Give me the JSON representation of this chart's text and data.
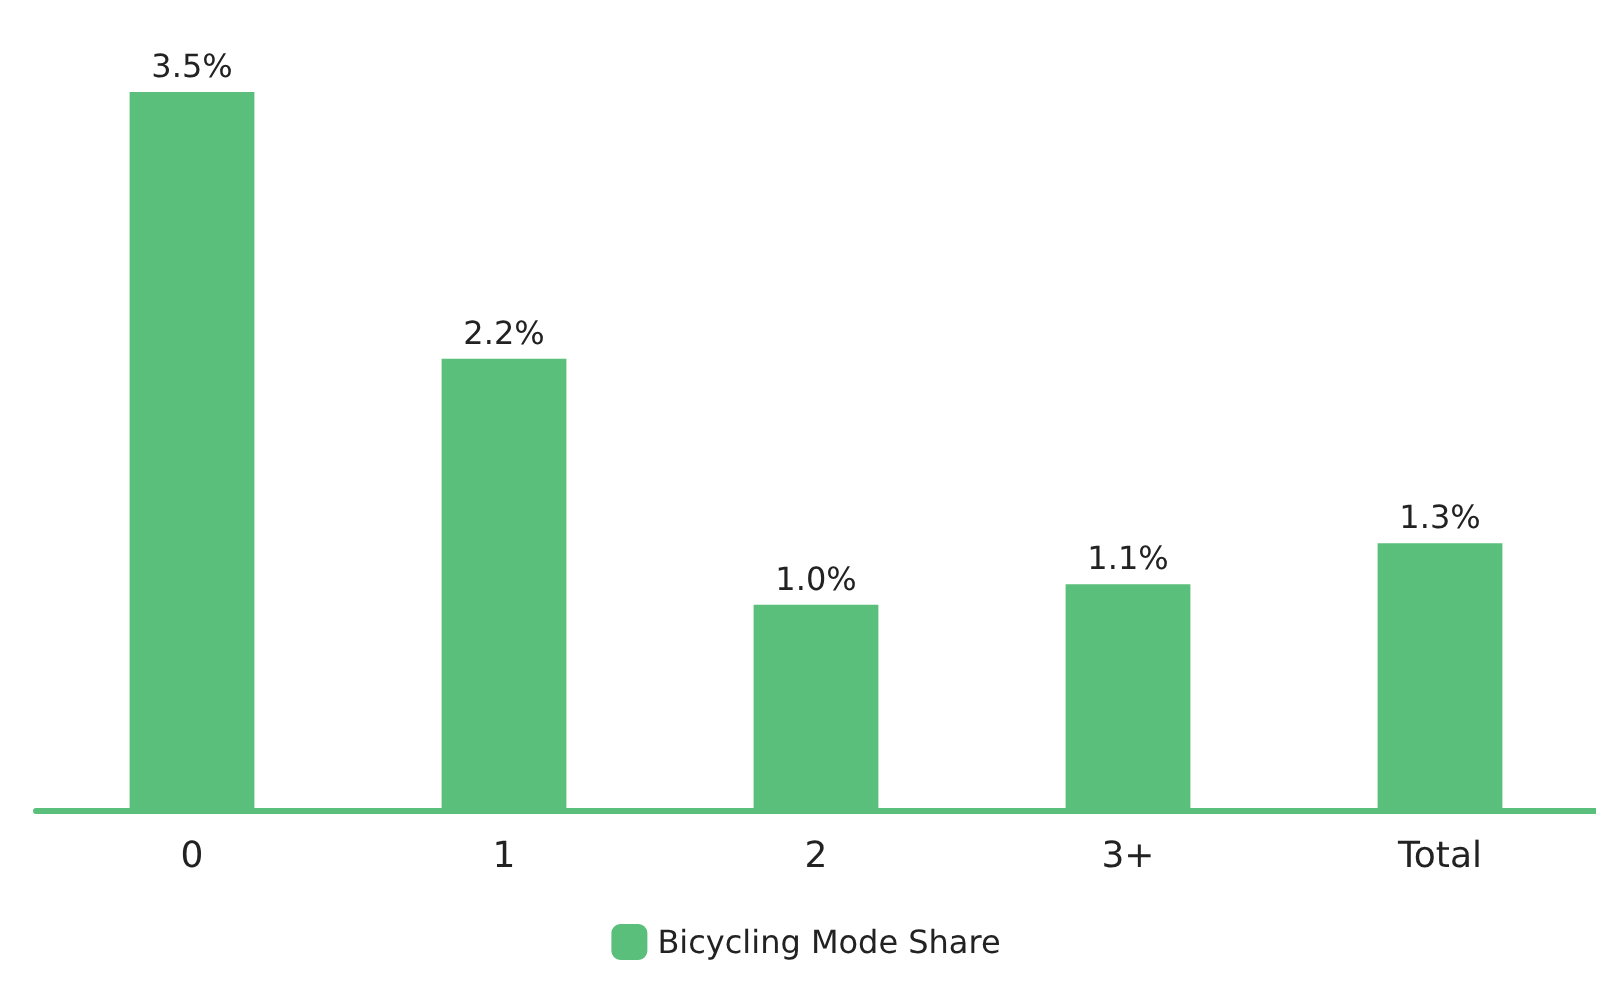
{
  "chart_data": {
    "type": "bar",
    "categories": [
      "0",
      "1",
      "2",
      "3+",
      "Total"
    ],
    "series": [
      {
        "name": "Bicycling Mode Share",
        "color": "#5abf7a",
        "values": [
          3.5,
          2.2,
          1.0,
          1.1,
          1.3
        ],
        "value_labels": [
          "3.5%",
          "2.2%",
          "1.0%",
          "1.1%",
          "1.3%"
        ]
      }
    ],
    "grid": false,
    "legend": "bottom"
  }
}
